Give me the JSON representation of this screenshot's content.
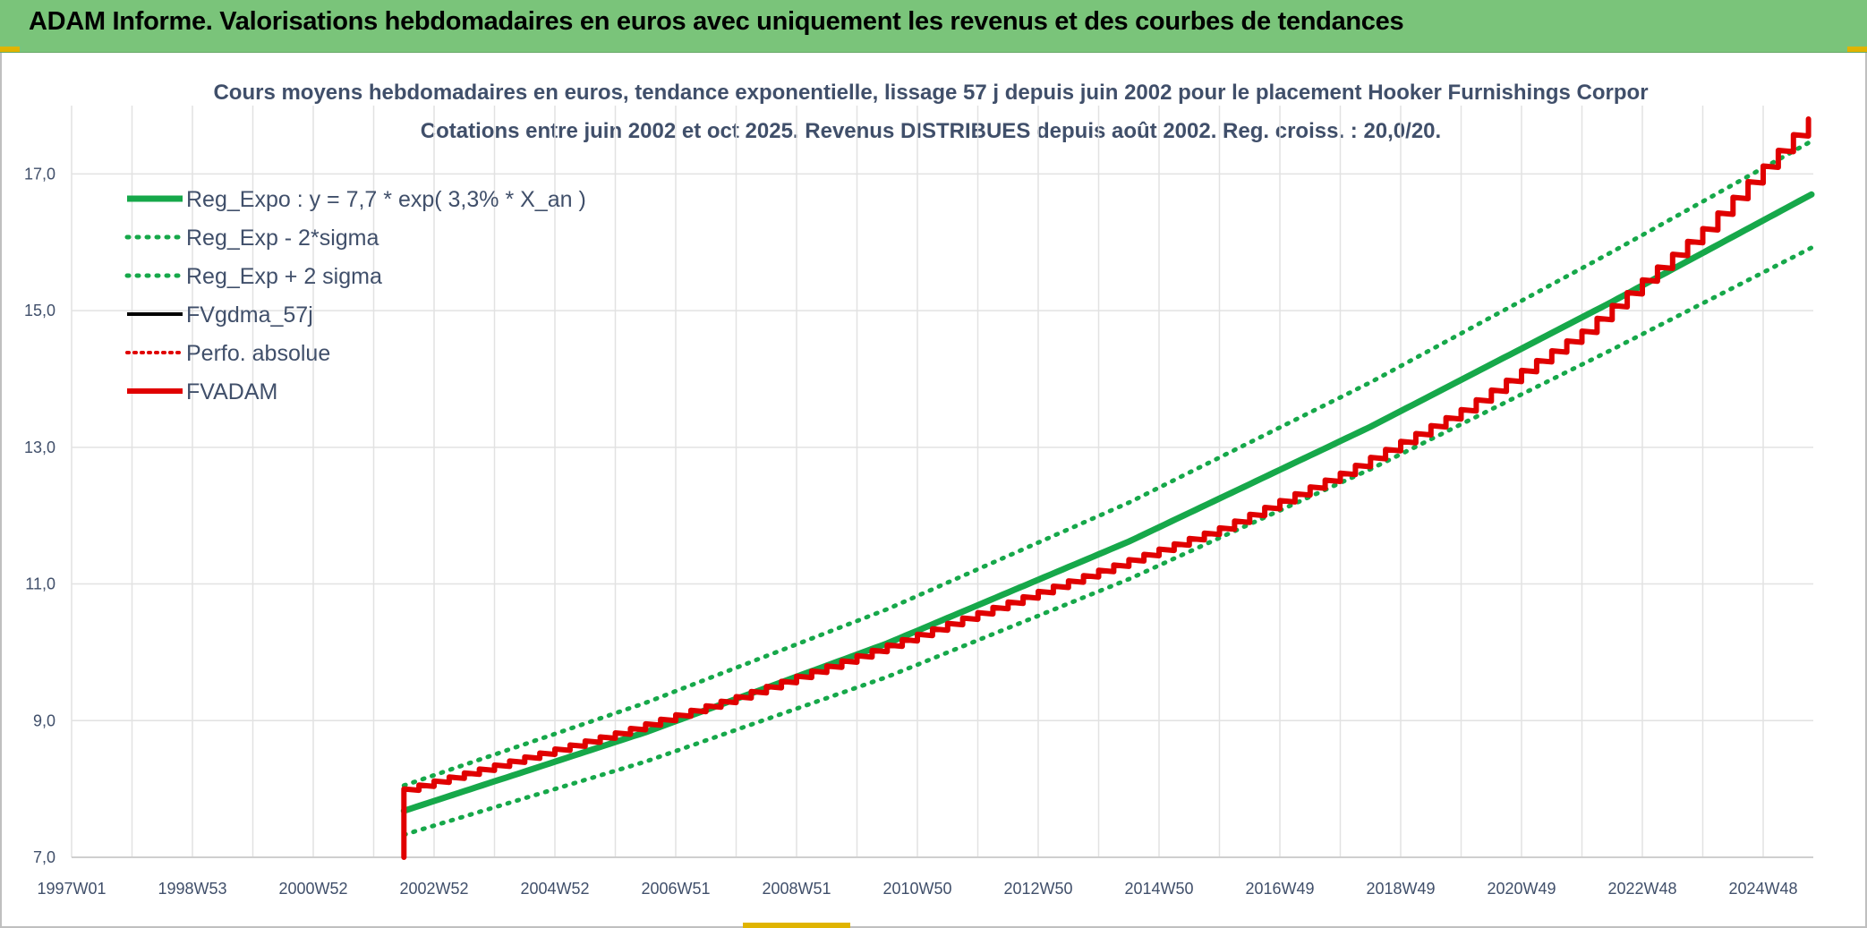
{
  "header": {
    "title": "ADAM Informe. Valorisations hebdomadaires en euros avec uniquement les revenus et des courbes de tendances"
  },
  "colors": {
    "header_bg": "#7ac47a",
    "reg_expo": "#16a84a",
    "fvadam": "#e00000",
    "fvgdma": "#000000",
    "grid": "#e2e2e2",
    "text": "#404f6a"
  },
  "chart_data": {
    "type": "line",
    "title": "Cours moyens hebdomadaires en euros, tendance exponentielle, lissage 57 j depuis juin 2002 pour le placement Hooker Furnishings Corpor",
    "subtitle": "Cotations entre juin 2002 et oct 2025. Revenus DISTRIBUES depuis août 2002. Reg. croiss. : 20,0/20.",
    "x_tick_labels": [
      "1997W01",
      "1998W53",
      "2000W52",
      "2002W52",
      "2004W52",
      "2006W51",
      "2008W51",
      "2010W50",
      "2012W50",
      "2014W50",
      "2016W49",
      "2018W49",
      "2020W49",
      "2022W48",
      "2024W48"
    ],
    "x_tick_years": [
      1997.0,
      1999.0,
      2001.0,
      2003.0,
      2005.0,
      2007.0,
      2009.0,
      2011.0,
      2013.0,
      2015.0,
      2017.0,
      2019.0,
      2021.0,
      2023.0,
      2025.0
    ],
    "x_range": [
      1997.0,
      2026.0
    ],
    "y_tick_labels": [
      "7,0",
      "9,0",
      "11,0",
      "13,0",
      "15,0",
      "17,0"
    ],
    "y_ticks": [
      7,
      9,
      11,
      13,
      15,
      17
    ],
    "ylim": [
      7.0,
      18.0
    ],
    "grid": true,
    "legend_position": "top-left",
    "series": [
      {
        "name": "Reg_Expo : y = 7,7 * exp( 3,3% *  X_an )",
        "style": "solid-green",
        "points": [
          [
            2002.5,
            7.68
          ],
          [
            2006.5,
            8.83
          ],
          [
            2010.5,
            10.13
          ],
          [
            2014.5,
            11.62
          ],
          [
            2018.5,
            13.3
          ],
          [
            2022.5,
            15.13
          ],
          [
            2025.8,
            16.7
          ]
        ]
      },
      {
        "name": "Reg_Exp - 2*sigma",
        "style": "dotted-green",
        "points": [
          [
            2002.5,
            7.33
          ],
          [
            2006.5,
            8.4
          ],
          [
            2010.5,
            9.64
          ],
          [
            2014.5,
            11.07
          ],
          [
            2018.5,
            12.68
          ],
          [
            2022.5,
            14.43
          ],
          [
            2025.8,
            15.92
          ]
        ]
      },
      {
        "name": "Reg_Exp + 2 sigma",
        "style": "dotted-green",
        "points": [
          [
            2002.5,
            8.05
          ],
          [
            2006.5,
            9.26
          ],
          [
            2010.5,
            10.63
          ],
          [
            2014.5,
            12.19
          ],
          [
            2018.5,
            13.95
          ],
          [
            2022.5,
            15.86
          ],
          [
            2025.8,
            17.48
          ]
        ]
      },
      {
        "name": "FVgdma_57j",
        "style": "solid-black",
        "points": []
      },
      {
        "name": "Perfo. absolue",
        "style": "dotted-red",
        "points": []
      },
      {
        "name": "FVADAM",
        "style": "solid-red-step",
        "points": [
          [
            2002.5,
            7.0
          ],
          [
            2002.5,
            8.0
          ],
          [
            2004.0,
            8.35
          ],
          [
            2006.0,
            8.82
          ],
          [
            2008.0,
            9.35
          ],
          [
            2010.0,
            9.95
          ],
          [
            2012.0,
            10.58
          ],
          [
            2014.0,
            11.2
          ],
          [
            2016.0,
            11.82
          ],
          [
            2018.0,
            12.62
          ],
          [
            2020.0,
            13.55
          ],
          [
            2022.0,
            14.7
          ],
          [
            2024.0,
            16.2
          ],
          [
            2025.8,
            17.85
          ]
        ]
      }
    ]
  }
}
